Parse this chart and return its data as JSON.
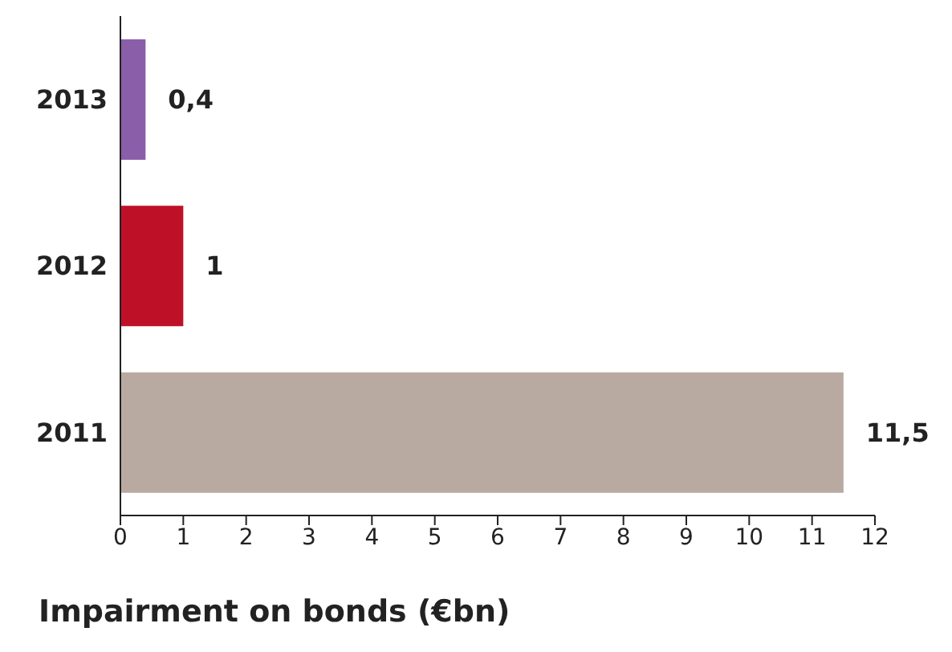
{
  "chart_data": {
    "type": "bar",
    "orientation": "horizontal",
    "title": "Impairment on bonds (€bn)",
    "categories": [
      "2013",
      "2012",
      "2011"
    ],
    "values": [
      0.4,
      1,
      11.5
    ],
    "value_labels": [
      "0,4",
      "1",
      "11,5"
    ],
    "colors": [
      "#8a5ea8",
      "#be1128",
      "#b8aaa0"
    ],
    "xlim": [
      0,
      12
    ],
    "xticks": [
      0,
      1,
      2,
      3,
      4,
      5,
      6,
      7,
      8,
      9,
      10,
      11,
      12
    ],
    "grid": false,
    "legend": false
  }
}
